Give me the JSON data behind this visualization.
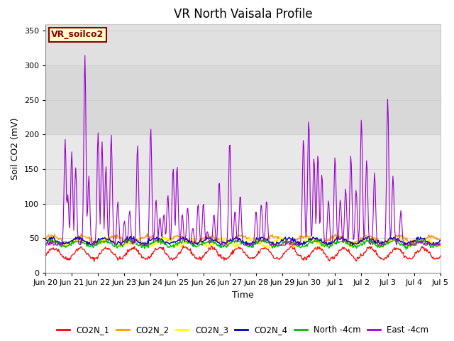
{
  "title": "VR North Vaisala Profile",
  "ylabel": "Soil CO2 (mV)",
  "xlabel": "Time",
  "annotation": "VR_soilco2",
  "ylim": [
    0,
    360
  ],
  "yticks": [
    0,
    50,
    100,
    150,
    200,
    250,
    300,
    350
  ],
  "series_colors": {
    "CO2N_1": "#ff0000",
    "CO2N_2": "#ff9900",
    "CO2N_3": "#ffff00",
    "CO2N_4": "#0000bb",
    "North_4cm": "#00bb00",
    "East_4cm": "#9900cc"
  },
  "legend_labels": [
    "CO2N_1",
    "CO2N_2",
    "CO2N_3",
    "CO2N_4",
    "North -4cm",
    "East -4cm"
  ],
  "xtick_labels": [
    "Jun 20",
    "Jun 21",
    "Jun 22",
    "Jun 23",
    "Jun 24",
    "Jun 25",
    "Jun 26",
    "Jun 27",
    "Jun 28",
    "Jun 29",
    "Jun 30",
    "Jul 1",
    "Jul 2",
    "Jul 3",
    "Jul 4",
    "Jul 5"
  ],
  "bg_bands": [
    [
      0,
      100,
      "#ffffff"
    ],
    [
      100,
      200,
      "#e8e8e8"
    ],
    [
      200,
      300,
      "#d8d8d8"
    ],
    [
      300,
      360,
      "#e0e0e0"
    ]
  ],
  "title_fontsize": 12,
  "label_fontsize": 9,
  "tick_fontsize": 8,
  "legend_fontsize": 8.5
}
